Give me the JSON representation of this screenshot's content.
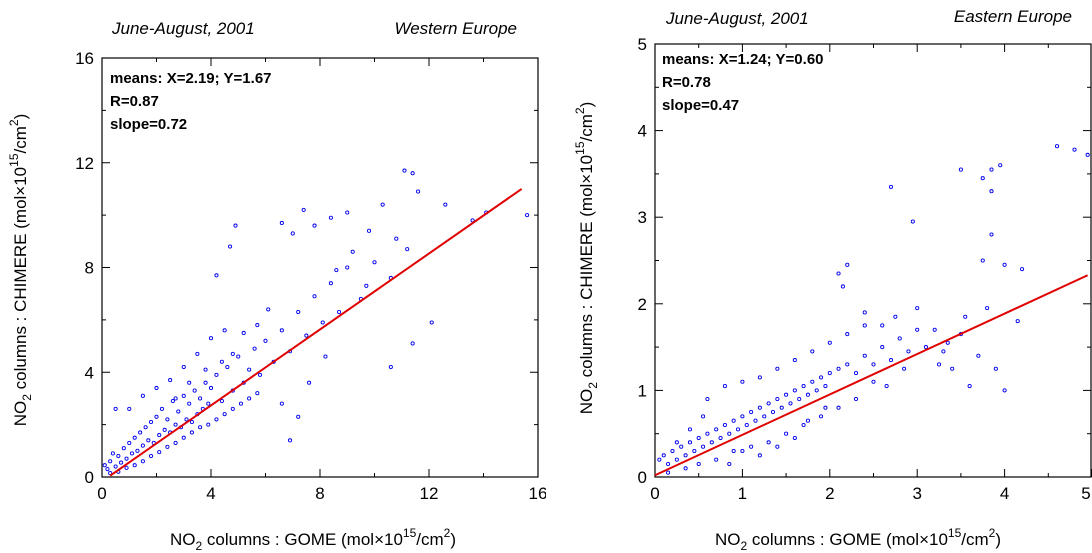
{
  "chart_data": [
    {
      "type": "scatter",
      "period": "June-August, 2001",
      "region": "Western Europe",
      "xlabel": {
        "main": "NO",
        "sub": "2",
        "rest": " columns : GOME (mol×10",
        "sup": "15",
        "tail": "/cm",
        "sup2": "2",
        "end": ")"
      },
      "ylabel": {
        "main": "NO",
        "sub": "2",
        "rest": " columns : CHIMERE (mol×10",
        "sup": "15",
        "tail": "/cm",
        "sup2": "2",
        "end": ")"
      },
      "xlim": [
        0,
        16
      ],
      "ylim": [
        0,
        16
      ],
      "xticks": [
        0,
        4,
        8,
        12,
        16
      ],
      "yticks": [
        0,
        4,
        8,
        12,
        16
      ],
      "minor_step": 2,
      "stats": [
        "means: X=2.19; Y=1.67",
        "R=0.87",
        "slope=0.72"
      ],
      "fit_line": {
        "x": [
          0.3,
          15.4
        ],
        "y": [
          0.05,
          11.0
        ],
        "color": "#e00000"
      },
      "marker_color": "#0000ee",
      "points": [
        [
          0.1,
          0.45
        ],
        [
          0.2,
          0.3
        ],
        [
          0.3,
          0.6
        ],
        [
          0.4,
          0.9
        ],
        [
          0.5,
          0.4
        ],
        [
          0.6,
          0.8
        ],
        [
          0.7,
          0.55
        ],
        [
          0.8,
          1.1
        ],
        [
          0.9,
          0.7
        ],
        [
          1.0,
          1.3
        ],
        [
          1.1,
          0.9
        ],
        [
          1.2,
          1.5
        ],
        [
          1.3,
          1.0
        ],
        [
          1.4,
          1.7
        ],
        [
          1.5,
          1.2
        ],
        [
          1.6,
          1.9
        ],
        [
          1.7,
          1.4
        ],
        [
          1.8,
          2.1
        ],
        [
          1.9,
          1.3
        ],
        [
          2.0,
          2.3
        ],
        [
          2.1,
          1.6
        ],
        [
          2.2,
          2.6
        ],
        [
          2.3,
          1.8
        ],
        [
          2.4,
          2.2
        ],
        [
          2.5,
          1.7
        ],
        [
          2.6,
          2.9
        ],
        [
          2.7,
          2.0
        ],
        [
          2.8,
          2.5
        ],
        [
          2.9,
          1.9
        ],
        [
          3.0,
          3.1
        ],
        [
          3.1,
          2.2
        ],
        [
          3.2,
          2.8
        ],
        [
          3.3,
          2.1
        ],
        [
          3.4,
          3.3
        ],
        [
          3.5,
          2.4
        ],
        [
          3.6,
          3.0
        ],
        [
          3.7,
          2.6
        ],
        [
          3.8,
          3.6
        ],
        [
          3.9,
          2.8
        ],
        [
          4.0,
          3.4
        ],
        [
          4.2,
          3.9
        ],
        [
          4.4,
          2.9
        ],
        [
          4.6,
          4.2
        ],
        [
          4.8,
          3.3
        ],
        [
          5.0,
          4.6
        ],
        [
          5.2,
          3.6
        ],
        [
          5.4,
          4.1
        ],
        [
          5.6,
          4.9
        ],
        [
          5.8,
          3.9
        ],
        [
          6.0,
          5.2
        ],
        [
          6.3,
          4.4
        ],
        [
          6.6,
          5.6
        ],
        [
          6.9,
          4.8
        ],
        [
          7.2,
          6.3
        ],
        [
          7.5,
          5.4
        ],
        [
          7.8,
          6.9
        ],
        [
          8.1,
          5.9
        ],
        [
          8.4,
          7.4
        ],
        [
          8.7,
          6.3
        ],
        [
          9.0,
          8.0
        ],
        [
          1.0,
          2.6
        ],
        [
          1.5,
          3.1
        ],
        [
          2.0,
          3.4
        ],
        [
          2.5,
          3.7
        ],
        [
          3.0,
          4.2
        ],
        [
          3.5,
          4.7
        ],
        [
          4.0,
          5.3
        ],
        [
          4.5,
          5.6
        ],
        [
          4.2,
          7.7
        ],
        [
          4.7,
          8.8
        ],
        [
          4.9,
          9.6
        ],
        [
          6.6,
          9.7
        ],
        [
          7.0,
          9.3
        ],
        [
          7.4,
          10.2
        ],
        [
          7.8,
          9.6
        ],
        [
          8.4,
          9.9
        ],
        [
          9.0,
          10.1
        ],
        [
          9.8,
          9.4
        ],
        [
          10.3,
          10.4
        ],
        [
          10.8,
          9.1
        ],
        [
          11.1,
          11.7
        ],
        [
          11.4,
          11.6
        ],
        [
          11.6,
          10.9
        ],
        [
          12.6,
          10.4
        ],
        [
          13.6,
          9.8
        ],
        [
          14.1,
          10.1
        ],
        [
          15.6,
          10.0
        ],
        [
          11.4,
          5.1
        ],
        [
          10.6,
          4.2
        ],
        [
          12.1,
          5.9
        ],
        [
          6.9,
          1.4
        ],
        [
          7.2,
          2.3
        ],
        [
          6.6,
          2.8
        ],
        [
          7.6,
          3.6
        ],
        [
          8.2,
          4.6
        ],
        [
          9.5,
          6.8
        ],
        [
          10.0,
          8.2
        ],
        [
          10.6,
          7.6
        ],
        [
          11.2,
          8.7
        ],
        [
          8.6,
          7.9
        ],
        [
          9.2,
          8.6
        ],
        [
          9.7,
          7.3
        ],
        [
          6.1,
          6.4
        ],
        [
          5.7,
          5.8
        ],
        [
          5.2,
          5.5
        ],
        [
          4.8,
          4.7
        ],
        [
          4.4,
          4.4
        ],
        [
          3.8,
          4.1
        ],
        [
          3.2,
          3.6
        ],
        [
          2.7,
          3.0
        ],
        [
          0.5,
          2.6
        ],
        [
          0.3,
          0.15
        ],
        [
          0.6,
          0.2
        ],
        [
          0.9,
          0.35
        ],
        [
          1.2,
          0.45
        ],
        [
          1.5,
          0.6
        ],
        [
          1.8,
          0.8
        ],
        [
          2.1,
          0.95
        ],
        [
          2.4,
          1.15
        ],
        [
          2.7,
          1.3
        ],
        [
          3.0,
          1.5
        ],
        [
          3.3,
          1.7
        ],
        [
          3.6,
          1.9
        ],
        [
          3.9,
          2.0
        ],
        [
          4.2,
          2.2
        ],
        [
          4.5,
          2.4
        ],
        [
          4.8,
          2.6
        ],
        [
          5.1,
          2.8
        ],
        [
          5.4,
          3.0
        ],
        [
          5.7,
          3.2
        ]
      ]
    },
    {
      "type": "scatter",
      "period": "June-August, 2001",
      "region": "Eastern Europe",
      "xlabel": {
        "main": "NO",
        "sub": "2",
        "rest": " columns : GOME (mol×10",
        "sup": "15",
        "tail": "/cm",
        "sup2": "2",
        "end": ")"
      },
      "ylabel": {
        "main": "NO",
        "sub": "2",
        "rest": " columns : CHIMERE (mol×10",
        "sup": "15",
        "tail": "/cm",
        "sup2": "2",
        "end": ")"
      },
      "xlim": [
        0,
        5
      ],
      "ylim": [
        0,
        5
      ],
      "xticks": [
        0,
        1,
        2,
        3,
        4,
        5
      ],
      "yticks": [
        0,
        1,
        2,
        3,
        4,
        5
      ],
      "minor_step": 0.5,
      "stats": [
        "means: X=1.24; Y=0.60",
        "R=0.78",
        "slope=0.47"
      ],
      "fit_line": {
        "x": [
          0.0,
          4.95
        ],
        "y": [
          0.02,
          2.33
        ],
        "color": "#e00000"
      },
      "marker_color": "#0000ee",
      "points": [
        [
          0.05,
          0.2
        ],
        [
          0.1,
          0.25
        ],
        [
          0.15,
          0.15
        ],
        [
          0.2,
          0.3
        ],
        [
          0.25,
          0.2
        ],
        [
          0.3,
          0.35
        ],
        [
          0.35,
          0.25
        ],
        [
          0.4,
          0.4
        ],
        [
          0.45,
          0.3
        ],
        [
          0.5,
          0.45
        ],
        [
          0.55,
          0.35
        ],
        [
          0.6,
          0.5
        ],
        [
          0.65,
          0.4
        ],
        [
          0.7,
          0.55
        ],
        [
          0.75,
          0.45
        ],
        [
          0.8,
          0.6
        ],
        [
          0.85,
          0.5
        ],
        [
          0.9,
          0.65
        ],
        [
          0.95,
          0.55
        ],
        [
          1.0,
          0.7
        ],
        [
          1.05,
          0.6
        ],
        [
          1.1,
          0.75
        ],
        [
          1.15,
          0.65
        ],
        [
          1.2,
          0.8
        ],
        [
          1.25,
          0.7
        ],
        [
          1.3,
          0.85
        ],
        [
          1.35,
          0.75
        ],
        [
          1.4,
          0.9
        ],
        [
          1.45,
          0.8
        ],
        [
          1.5,
          0.95
        ],
        [
          1.55,
          0.85
        ],
        [
          1.6,
          1.0
        ],
        [
          1.65,
          0.9
        ],
        [
          1.7,
          1.05
        ],
        [
          1.75,
          0.95
        ],
        [
          1.8,
          1.1
        ],
        [
          1.85,
          1.0
        ],
        [
          1.9,
          1.15
        ],
        [
          1.95,
          1.05
        ],
        [
          2.0,
          1.2
        ],
        [
          2.1,
          1.25
        ],
        [
          2.2,
          1.3
        ],
        [
          2.3,
          1.2
        ],
        [
          2.4,
          1.4
        ],
        [
          2.5,
          1.3
        ],
        [
          2.6,
          1.5
        ],
        [
          2.7,
          1.35
        ],
        [
          2.8,
          1.6
        ],
        [
          2.9,
          1.45
        ],
        [
          3.0,
          1.7
        ],
        [
          0.5,
          0.15
        ],
        [
          0.7,
          0.2
        ],
        [
          0.9,
          0.3
        ],
        [
          1.1,
          0.35
        ],
        [
          1.3,
          0.4
        ],
        [
          1.5,
          0.5
        ],
        [
          1.7,
          0.6
        ],
        [
          1.9,
          0.7
        ],
        [
          2.1,
          0.8
        ],
        [
          2.3,
          0.9
        ],
        [
          0.6,
          0.9
        ],
        [
          0.8,
          1.05
        ],
        [
          1.0,
          1.1
        ],
        [
          1.2,
          1.15
        ],
        [
          1.4,
          1.25
        ],
        [
          1.6,
          1.35
        ],
        [
          1.8,
          1.45
        ],
        [
          2.0,
          1.55
        ],
        [
          2.2,
          1.65
        ],
        [
          2.4,
          1.75
        ],
        [
          2.1,
          2.35
        ],
        [
          2.2,
          2.45
        ],
        [
          2.15,
          2.2
        ],
        [
          2.4,
          1.9
        ],
        [
          2.6,
          1.75
        ],
        [
          2.75,
          1.85
        ],
        [
          3.0,
          1.95
        ],
        [
          3.1,
          1.5
        ],
        [
          3.2,
          1.7
        ],
        [
          3.25,
          1.3
        ],
        [
          3.35,
          1.55
        ],
        [
          3.4,
          1.25
        ],
        [
          3.5,
          1.65
        ],
        [
          3.55,
          1.85
        ],
        [
          3.6,
          1.05
        ],
        [
          3.7,
          1.4
        ],
        [
          3.8,
          1.95
        ],
        [
          3.9,
          1.25
        ],
        [
          4.0,
          1.0
        ],
        [
          4.15,
          1.8
        ],
        [
          4.2,
          2.4
        ],
        [
          4.0,
          2.45
        ],
        [
          3.85,
          2.8
        ],
        [
          3.75,
          2.5
        ],
        [
          2.95,
          2.95
        ],
        [
          3.5,
          3.55
        ],
        [
          3.85,
          3.55
        ],
        [
          3.95,
          3.6
        ],
        [
          3.75,
          3.45
        ],
        [
          3.85,
          3.3
        ],
        [
          2.7,
          3.35
        ],
        [
          4.6,
          3.82
        ],
        [
          4.8,
          3.78
        ],
        [
          4.95,
          3.72
        ],
        [
          3.3,
          1.45
        ],
        [
          2.85,
          1.25
        ],
        [
          2.5,
          1.1
        ],
        [
          2.65,
          1.05
        ],
        [
          1.95,
          0.8
        ],
        [
          1.75,
          0.65
        ],
        [
          1.0,
          0.3
        ],
        [
          1.2,
          0.25
        ],
        [
          1.4,
          0.35
        ],
        [
          0.85,
          0.15
        ],
        [
          1.6,
          0.45
        ],
        [
          0.35,
          0.1
        ],
        [
          0.15,
          0.05
        ],
        [
          0.25,
          0.4
        ],
        [
          0.4,
          0.55
        ],
        [
          0.55,
          0.7
        ]
      ]
    }
  ]
}
